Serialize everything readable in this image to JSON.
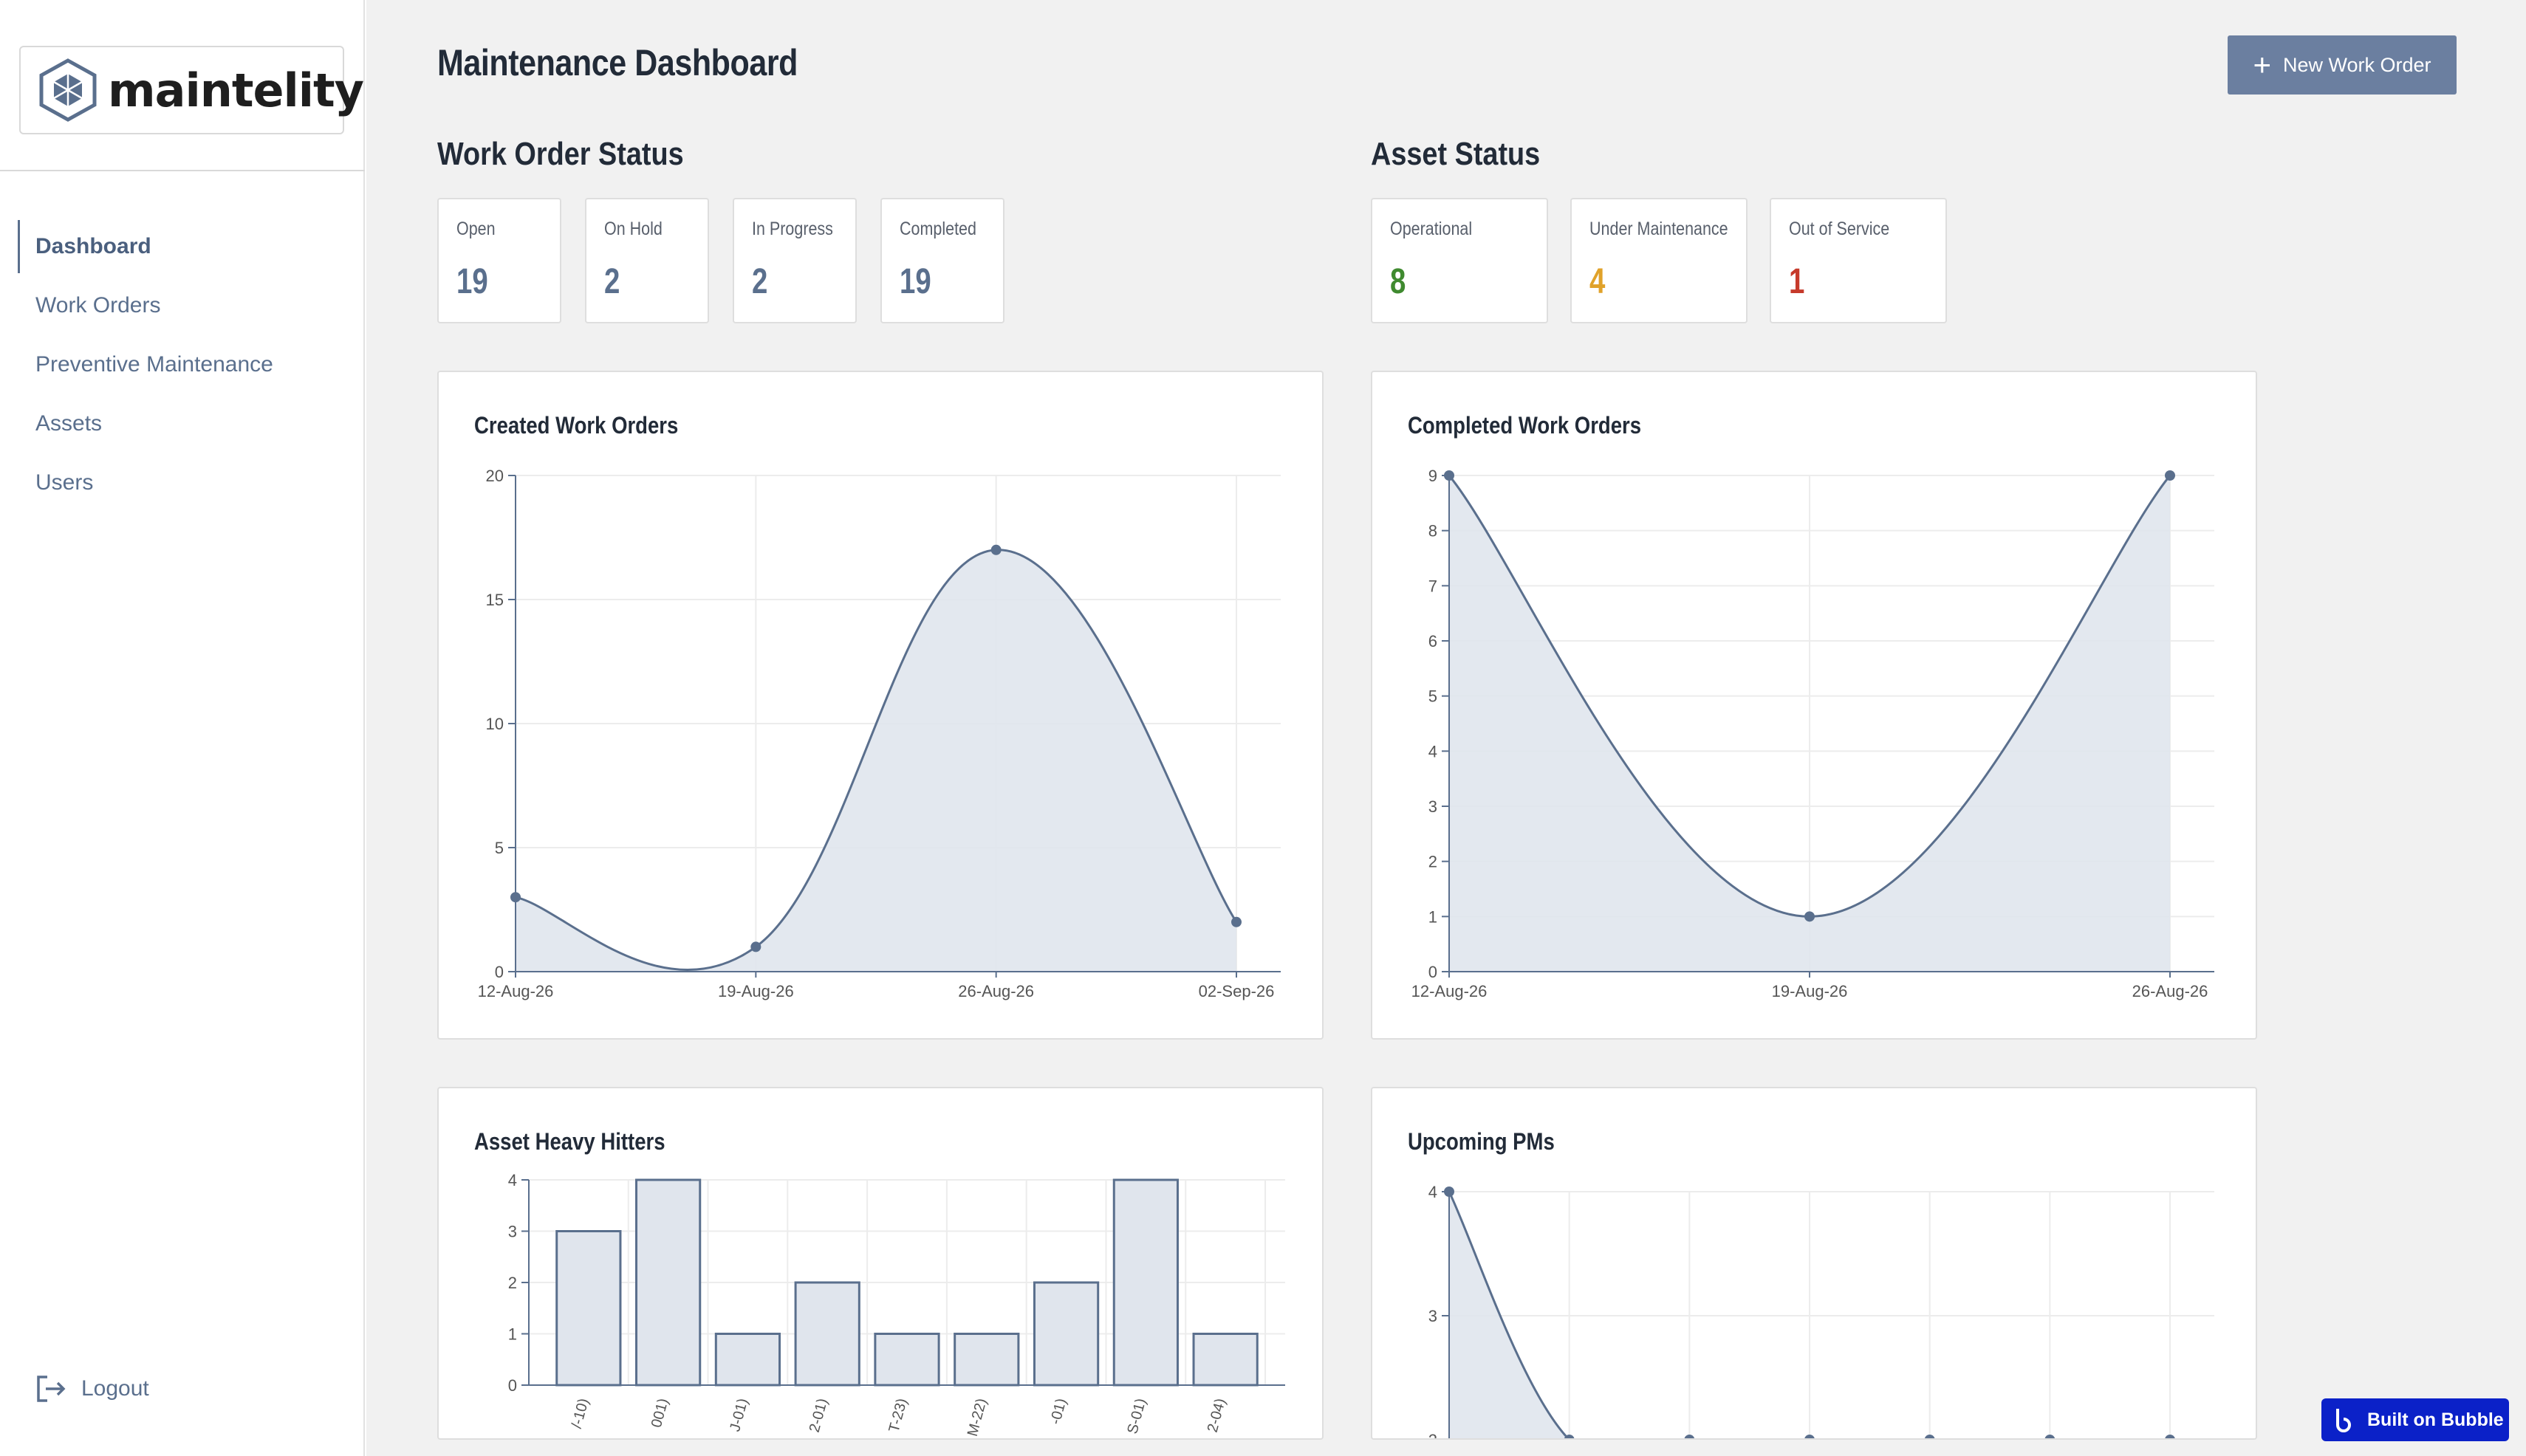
{
  "brand": {
    "name": "maintelity"
  },
  "sidebar": {
    "items": [
      {
        "label": "Dashboard",
        "active": true
      },
      {
        "label": "Work Orders",
        "active": false
      },
      {
        "label": "Preventive Maintenance",
        "active": false
      },
      {
        "label": "Assets",
        "active": false
      },
      {
        "label": "Users",
        "active": false
      }
    ],
    "logout_label": "Logout"
  },
  "header": {
    "title": "Maintenance Dashboard",
    "new_button_label": "New Work Order"
  },
  "work_order_status": {
    "title": "Work Order Status",
    "cards": [
      {
        "label": "Open",
        "value": "19",
        "color": "#5a6f8d"
      },
      {
        "label": "On Hold",
        "value": "2",
        "color": "#5a6f8d"
      },
      {
        "label": "In Progress",
        "value": "2",
        "color": "#5a6f8d"
      },
      {
        "label": "Completed",
        "value": "19",
        "color": "#5a6f8d"
      }
    ]
  },
  "asset_status": {
    "title": "Asset Status",
    "cards": [
      {
        "label": "Operational",
        "value": "8",
        "color": "#3f8a2f"
      },
      {
        "label": "Under Maintenance",
        "value": "4",
        "color": "#e0a22a"
      },
      {
        "label": "Out of Service",
        "value": "1",
        "color": "#c63a2b"
      }
    ]
  },
  "chart_data": [
    {
      "type": "area",
      "title": "Created Work Orders",
      "categories": [
        "12-Aug-26",
        "19-Aug-26",
        "26-Aug-26",
        "02-Sep-26"
      ],
      "values": [
        3,
        1,
        17,
        2
      ],
      "ylim": [
        0,
        20
      ],
      "yticks": [
        0,
        5,
        10,
        15,
        20
      ],
      "grid": true
    },
    {
      "type": "area",
      "title": "Completed Work Orders",
      "categories": [
        "12-Aug-26",
        "19-Aug-26",
        "26-Aug-26"
      ],
      "values": [
        9,
        1,
        9
      ],
      "ylim": [
        0,
        9
      ],
      "yticks": [
        0,
        1,
        2,
        3,
        4,
        5,
        6,
        7,
        8,
        9
      ],
      "grid": true
    },
    {
      "type": "bar",
      "title": "Asset Heavy Hitters",
      "categories": [
        "/-10)",
        "001)",
        "J-01)",
        "2-01)",
        "T-23)",
        "M-22)",
        "-01)",
        "S-01)",
        "2-04)"
      ],
      "values": [
        3,
        4,
        1,
        2,
        1,
        1,
        2,
        4,
        1
      ],
      "ylim": [
        0,
        4
      ],
      "yticks": [
        0,
        1,
        2,
        3,
        4
      ],
      "grid": true
    },
    {
      "type": "area",
      "title": "Upcoming PMs",
      "values": [
        4,
        2,
        2,
        2,
        2,
        2,
        2
      ],
      "ylim": [
        2,
        4
      ],
      "yticks": [
        2,
        3,
        4
      ],
      "grid": true
    }
  ],
  "colors": {
    "accent": "#5a6f8d",
    "fill": "#e0e5ed",
    "button": "#6b7fa0",
    "bubble": "#0b21c8"
  },
  "bubble_badge": {
    "label": "Built on Bubble"
  }
}
